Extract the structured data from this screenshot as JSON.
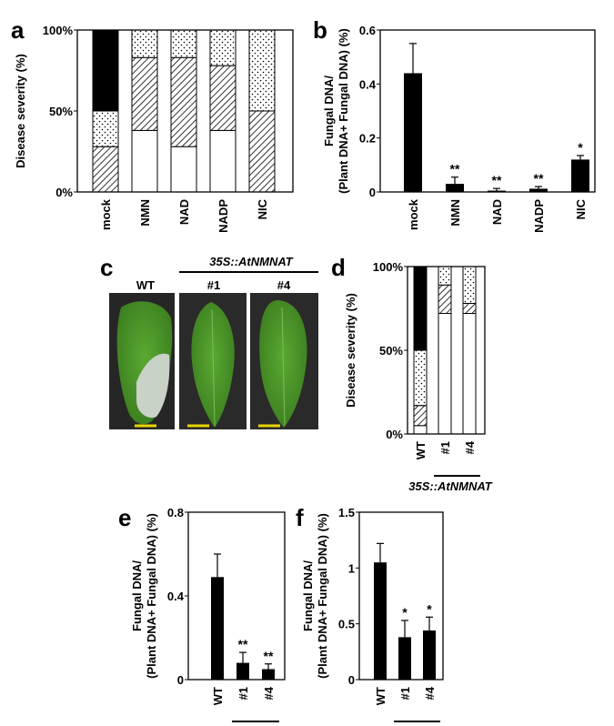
{
  "panels": {
    "a": "a",
    "b": "b",
    "c": "c",
    "d": "d",
    "e": "e",
    "f": "f"
  },
  "photo": {
    "labels": [
      "WT",
      "#1",
      "#4"
    ],
    "genotype": "35S::AtNMNAT",
    "colors": {
      "leaf": "#4e9a2a",
      "leaf_dark": "#3b7d1f",
      "background": "#262626",
      "scale_bar": "#e8d400"
    }
  },
  "chart_data": [
    {
      "id": "a",
      "type": "bar",
      "stacked": true,
      "categories": [
        "mock",
        "NMN",
        "NAD",
        "NADP",
        "NIC"
      ],
      "ylabel": "Disease severity  (%)",
      "yticks": [
        "0%",
        "50%",
        "100%"
      ],
      "ylim": [
        0,
        100
      ],
      "series": [
        {
          "pattern": "white",
          "values": [
            0,
            38,
            28,
            38,
            0
          ]
        },
        {
          "pattern": "hatched",
          "values": [
            28,
            45,
            55,
            40,
            50
          ]
        },
        {
          "pattern": "dotted",
          "values": [
            22,
            17,
            17,
            22,
            50
          ]
        },
        {
          "pattern": "black",
          "values": [
            50,
            0,
            0,
            0,
            0
          ]
        }
      ]
    },
    {
      "id": "b",
      "type": "bar",
      "categories": [
        "mock",
        "NMN",
        "NAD",
        "NADP",
        "NIC"
      ],
      "ylabel_lines": [
        "Fungal DNA/",
        "(Plant DNA+ Fungal DNA) (%)"
      ],
      "yticks": [
        "0",
        "0.2",
        "0.4",
        "0.6"
      ],
      "ylim": [
        0,
        0.6
      ],
      "values": [
        0.44,
        0.03,
        0.005,
        0.012,
        0.12
      ],
      "errors": [
        0.11,
        0.025,
        0.008,
        0.008,
        0.015
      ],
      "significance": [
        "",
        "**",
        "**",
        "**",
        "*"
      ]
    },
    {
      "id": "d",
      "type": "bar",
      "stacked": true,
      "categories": [
        "WT",
        "#1",
        "#4"
      ],
      "group_label": "35S::AtNMNAT",
      "ylabel": "Disease severity  (%)",
      "yticks": [
        "0%",
        "50%",
        "100%"
      ],
      "ylim": [
        0,
        100
      ],
      "series": [
        {
          "pattern": "white",
          "values": [
            5,
            72,
            72
          ]
        },
        {
          "pattern": "black_thin",
          "values": [
            0,
            0,
            0
          ]
        },
        {
          "pattern": "hatched",
          "values": [
            12,
            17,
            6
          ]
        },
        {
          "pattern": "dotted",
          "values": [
            33,
            11,
            22
          ]
        },
        {
          "pattern": "black",
          "values": [
            50,
            0,
            0
          ]
        }
      ]
    },
    {
      "id": "e",
      "type": "bar",
      "categories": [
        "WT",
        "#1",
        "#4"
      ],
      "group_label": "35S::AtNMNAT",
      "ylabel_lines": [
        "Fungal DNA/",
        "(Plant DNA+ Fungal DNA) (%)"
      ],
      "yticks": [
        "0",
        "0.4",
        "0.8"
      ],
      "ylim": [
        0,
        0.8
      ],
      "values": [
        0.49,
        0.08,
        0.05
      ],
      "errors": [
        0.11,
        0.05,
        0.025
      ],
      "significance": [
        "",
        "**",
        "**"
      ]
    },
    {
      "id": "f",
      "type": "bar",
      "categories": [
        "WT",
        "#1",
        "#4"
      ],
      "group_label": "35S::AtNMNAT",
      "ylabel_lines": [
        "Fungal DNA/",
        "(Plant DNA+ Fungal DNA) (%)"
      ],
      "yticks": [
        "0",
        "0.5",
        "1",
        "1.5"
      ],
      "ylim": [
        0,
        1.5
      ],
      "values": [
        1.05,
        0.38,
        0.44
      ],
      "errors": [
        0.17,
        0.15,
        0.12
      ],
      "significance": [
        "",
        "*",
        "*"
      ]
    }
  ]
}
